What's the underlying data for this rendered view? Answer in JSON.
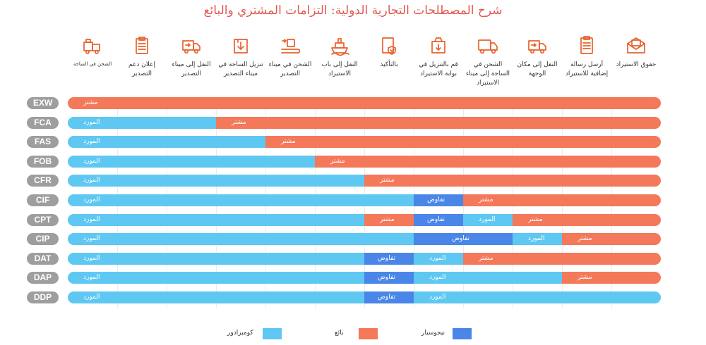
{
  "title": "شرح المصطلحات التجارية الدولية: التزامات المشتري والبائع",
  "colors": {
    "supplier": "#5ec8f2",
    "buyer": "#f4785a",
    "negotiate": "#4a86e8",
    "code_pill": "#9e9e9e",
    "accent": "#e8622c"
  },
  "chart_data": {
    "type": "table",
    "title": "شرح المصطلحات التجارية الدولية: التزامات المشتري والبائع",
    "columns": [
      {
        "header": "الشحن في الساحة",
        "small": true,
        "icon": "truck-loading-icon"
      },
      {
        "header": "إعلان دعم التصدير",
        "icon": "clipboard-icon"
      },
      {
        "header": "النقل إلى ميناء التصدير",
        "icon": "delivery-truck-icon"
      },
      {
        "header": "تنزيل الساحة في ميناء التصدير",
        "icon": "box-download-icon"
      },
      {
        "header": "الشحن في ميناء التصدير",
        "icon": "conveyor-box-icon"
      },
      {
        "header": "النقل إلى باب الاستيراد",
        "icon": "cargo-ship-icon"
      },
      {
        "header": "بالتأكيد",
        "icon": "insurance-check-icon"
      },
      {
        "header": "قم بالتنزيل في بوابة الاستيراد",
        "icon": "box-unload-icon"
      },
      {
        "header": "الشحن في الساحة إلى ميناء الاستيراد",
        "icon": "truck-icon"
      },
      {
        "header": "النقل إلى مكان الوجهة",
        "icon": "delivery-truck-icon"
      },
      {
        "header": "أرسل رسالة إضافية للاستيراد",
        "icon": "document-icon"
      },
      {
        "header": "حقوق الاستيراد",
        "icon": "envelope-icon"
      }
    ],
    "rows": [
      {
        "code": "EXW",
        "segments": [
          {
            "start": 0,
            "end": 12,
            "party": "buyer",
            "label": "مشتر"
          }
        ]
      },
      {
        "code": "FCA",
        "segments": [
          {
            "start": 0,
            "end": 3,
            "party": "supplier",
            "label": "المورد"
          },
          {
            "start": 3,
            "end": 12,
            "party": "buyer",
            "label": "مشتر"
          }
        ]
      },
      {
        "code": "FAS",
        "segments": [
          {
            "start": 0,
            "end": 4,
            "party": "supplier",
            "label": "المورد"
          },
          {
            "start": 4,
            "end": 12,
            "party": "buyer",
            "label": "مشتر"
          }
        ]
      },
      {
        "code": "FOB",
        "segments": [
          {
            "start": 0,
            "end": 5,
            "party": "supplier",
            "label": "المورد"
          },
          {
            "start": 5,
            "end": 12,
            "party": "buyer",
            "label": "مشتر"
          }
        ]
      },
      {
        "code": "CFR",
        "segments": [
          {
            "start": 0,
            "end": 6,
            "party": "supplier",
            "label": "المورد"
          },
          {
            "start": 6,
            "end": 12,
            "party": "buyer",
            "label": "مشتر"
          }
        ]
      },
      {
        "code": "CIF",
        "segments": [
          {
            "start": 0,
            "end": 7,
            "party": "supplier",
            "label": "المورد"
          },
          {
            "start": 7,
            "end": 8,
            "party": "negotiate",
            "label": "تفاوض"
          },
          {
            "start": 8,
            "end": 12,
            "party": "buyer",
            "label": "مشتر"
          }
        ]
      },
      {
        "code": "CPT",
        "segments": [
          {
            "start": 0,
            "end": 6,
            "party": "supplier",
            "label": "المورد"
          },
          {
            "start": 6,
            "end": 7,
            "party": "buyer",
            "label": "مشتر"
          },
          {
            "start": 7,
            "end": 8,
            "party": "negotiate",
            "label": "تفاوض"
          },
          {
            "start": 8,
            "end": 9,
            "party": "supplier",
            "label": "المورد"
          },
          {
            "start": 9,
            "end": 12,
            "party": "buyer",
            "label": "مشتر"
          }
        ]
      },
      {
        "code": "CIP",
        "segments": [
          {
            "start": 0,
            "end": 7,
            "party": "supplier",
            "label": "المورد"
          },
          {
            "start": 7,
            "end": 9,
            "party": "negotiate",
            "label": "تفاوض"
          },
          {
            "start": 9,
            "end": 10,
            "party": "supplier",
            "label": "المورد"
          },
          {
            "start": 10,
            "end": 12,
            "party": "buyer",
            "label": "مشتر"
          }
        ]
      },
      {
        "code": "DAT",
        "segments": [
          {
            "start": 0,
            "end": 6,
            "party": "supplier",
            "label": "المورد"
          },
          {
            "start": 6,
            "end": 7,
            "party": "negotiate",
            "label": "تفاوض"
          },
          {
            "start": 7,
            "end": 8,
            "party": "supplier",
            "label": "المورد"
          },
          {
            "start": 8,
            "end": 12,
            "party": "buyer",
            "label": "مشتر"
          }
        ]
      },
      {
        "code": "DAP",
        "segments": [
          {
            "start": 0,
            "end": 6,
            "party": "supplier",
            "label": "المورد"
          },
          {
            "start": 6,
            "end": 7,
            "party": "negotiate",
            "label": "تفاوض"
          },
          {
            "start": 7,
            "end": 10,
            "party": "supplier",
            "label": "المورد"
          },
          {
            "start": 10,
            "end": 12,
            "party": "buyer",
            "label": "مشتر"
          }
        ]
      },
      {
        "code": "DDP",
        "segments": [
          {
            "start": 0,
            "end": 6,
            "party": "supplier",
            "label": "المورد"
          },
          {
            "start": 6,
            "end": 7,
            "party": "negotiate",
            "label": "تفاوض"
          },
          {
            "start": 7,
            "end": 12,
            "party": "supplier",
            "label": "المورد"
          }
        ]
      }
    ],
    "legend": [
      {
        "party": "supplier",
        "label": "كومبرادور"
      },
      {
        "party": "buyer",
        "label": "بائع"
      },
      {
        "party": "negotiate",
        "label": "نيجوسيار"
      }
    ]
  }
}
